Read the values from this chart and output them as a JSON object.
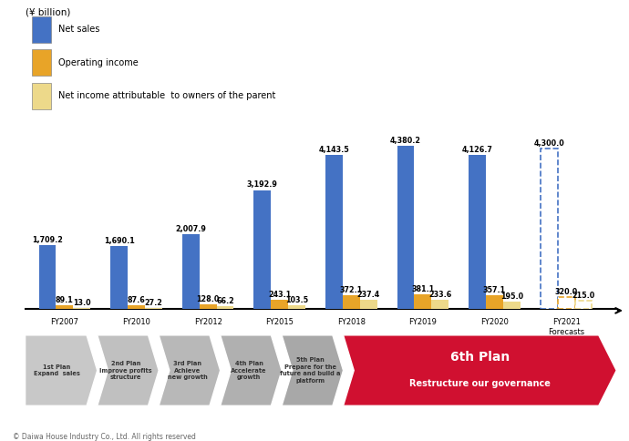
{
  "categories": [
    "FY2007",
    "FY2010",
    "FY2012",
    "FY2015",
    "FY2018",
    "FY2019",
    "FY2020",
    "FY2021"
  ],
  "net_sales": [
    1709.2,
    1690.1,
    2007.9,
    3192.9,
    4143.5,
    4380.2,
    4126.7,
    4300.0
  ],
  "operating_income": [
    89.1,
    87.6,
    128.0,
    243.1,
    372.1,
    381.1,
    357.1,
    320.0
  ],
  "net_income": [
    13.0,
    27.2,
    66.2,
    103.5,
    237.4,
    233.6,
    195.0,
    215.0
  ],
  "net_sales_color": "#4472C4",
  "operating_income_color": "#E8A428",
  "net_income_color": "#EDD98A",
  "y_unit": "(¥ billion)",
  "legend_labels": [
    "Net sales",
    "Operating income",
    "Net income attributable  to owners of the parent"
  ],
  "plan_labels_gray": [
    "1st Plan\nExpand  sales",
    "2nd Plan\nImprove profits\nstructure",
    "3rd Plan\nAchieve\nnew growth",
    "4th Plan\nAccelerate\ngrowth",
    "5th Plan\nPrepare for the\nfuture and build a\nplatform"
  ],
  "plan_colors_gray": [
    "#C8C8C8",
    "#C0C0C0",
    "#B8B8B8",
    "#B0B0B0",
    "#A8A8A8"
  ],
  "plan6_label1": "6th Plan",
  "plan6_label2": "Restructure our governance",
  "plan6_color": "#D01030",
  "copyright": "© Daiwa House Industry Co., Ltd. All rights reserved"
}
